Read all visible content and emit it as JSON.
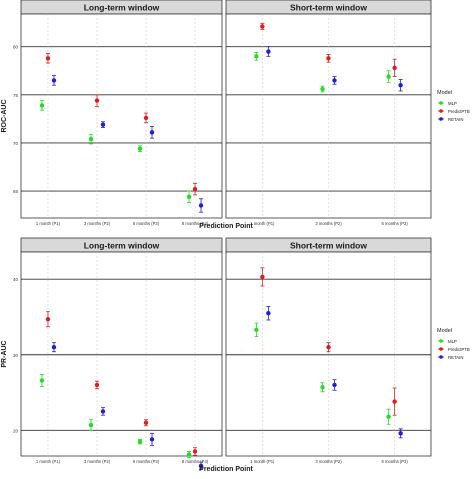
{
  "chart_data": [
    {
      "type": "scatter",
      "ylabel": "ROC-AUC",
      "xlabel": "Prediction Point",
      "ylim": [
        62.2,
        83.4
      ],
      "yticks": [
        65,
        70,
        75,
        80
      ],
      "errorbars": true,
      "panels": [
        {
          "title": "Long-term window",
          "categories": [
            "1 month (P1)",
            "3 months (P2)",
            "6 months (P3)",
            "8 months (P4)"
          ],
          "series": [
            {
              "name": "MLP",
              "values": [
                73.9,
                70.4,
                69.4,
                64.4
              ],
              "errors": [
                0.5,
                0.5,
                0.3,
                0.6
              ]
            },
            {
              "name": "PredictPTB",
              "values": [
                78.8,
                74.4,
                72.6,
                65.2
              ],
              "errors": [
                0.5,
                0.6,
                0.5,
                0.6
              ]
            },
            {
              "name": "RETAIN",
              "values": [
                76.5,
                71.9,
                71.1,
                63.5
              ],
              "errors": [
                0.5,
                0.3,
                0.6,
                0.7
              ]
            }
          ]
        },
        {
          "title": "Short-term window",
          "categories": [
            "1 month (P1)",
            "3 months (P2)",
            "6 months (P3)"
          ],
          "series": [
            {
              "name": "MLP",
              "values": [
                79.0,
                75.6,
                76.9
              ],
              "errors": [
                0.4,
                0.3,
                0.6
              ]
            },
            {
              "name": "PredictPTB",
              "values": [
                82.1,
                78.8,
                77.8
              ],
              "errors": [
                0.3,
                0.4,
                0.9
              ]
            },
            {
              "name": "RETAIN",
              "values": [
                79.5,
                76.5,
                76.0
              ],
              "errors": [
                0.5,
                0.4,
                0.6
              ]
            }
          ]
        }
      ]
    },
    {
      "type": "scatter",
      "ylabel": "PR-AUC",
      "xlabel": "Prediction Point",
      "ylim": [
        16.6,
        43.6
      ],
      "yticks": [
        20,
        30,
        40
      ],
      "errorbars": true,
      "panels": [
        {
          "title": "Long-term window",
          "categories": [
            "1 month (P1)",
            "3 months (P2)",
            "6 months (P3)",
            "8 months (P4)"
          ],
          "series": [
            {
              "name": "MLP",
              "values": [
                26.6,
                20.7,
                18.5,
                16.8
              ],
              "errors": [
                0.8,
                0.7,
                0.3,
                0.4
              ]
            },
            {
              "name": "PredictPTB",
              "values": [
                34.7,
                26.0,
                21.0,
                17.2
              ],
              "errors": [
                1.0,
                0.5,
                0.4,
                0.5
              ]
            },
            {
              "name": "RETAIN",
              "values": [
                31.0,
                22.5,
                18.8,
                15.3
              ],
              "errors": [
                0.6,
                0.5,
                0.8,
                0.5
              ]
            }
          ]
        },
        {
          "title": "Short-term window",
          "categories": [
            "1 month (P1)",
            "3 months (P2)",
            "6 months (P3)"
          ],
          "series": [
            {
              "name": "MLP",
              "values": [
                33.3,
                25.7,
                21.8
              ],
              "errors": [
                0.9,
                0.6,
                1.0
              ]
            },
            {
              "name": "PredictPTB",
              "values": [
                40.3,
                31.0,
                23.8
              ],
              "errors": [
                1.2,
                0.6,
                1.8
              ]
            },
            {
              "name": "RETAIN",
              "values": [
                35.5,
                26.0,
                19.6
              ],
              "errors": [
                0.9,
                0.7,
                0.6
              ]
            }
          ]
        }
      ]
    }
  ],
  "legend": {
    "title": "Model",
    "items": [
      {
        "label": "MLP",
        "color": "#22dd22"
      },
      {
        "label": "PredictPTB",
        "color": "#dd1c1c"
      },
      {
        "label": "RETAIN",
        "color": "#1f1fcc"
      }
    ]
  }
}
